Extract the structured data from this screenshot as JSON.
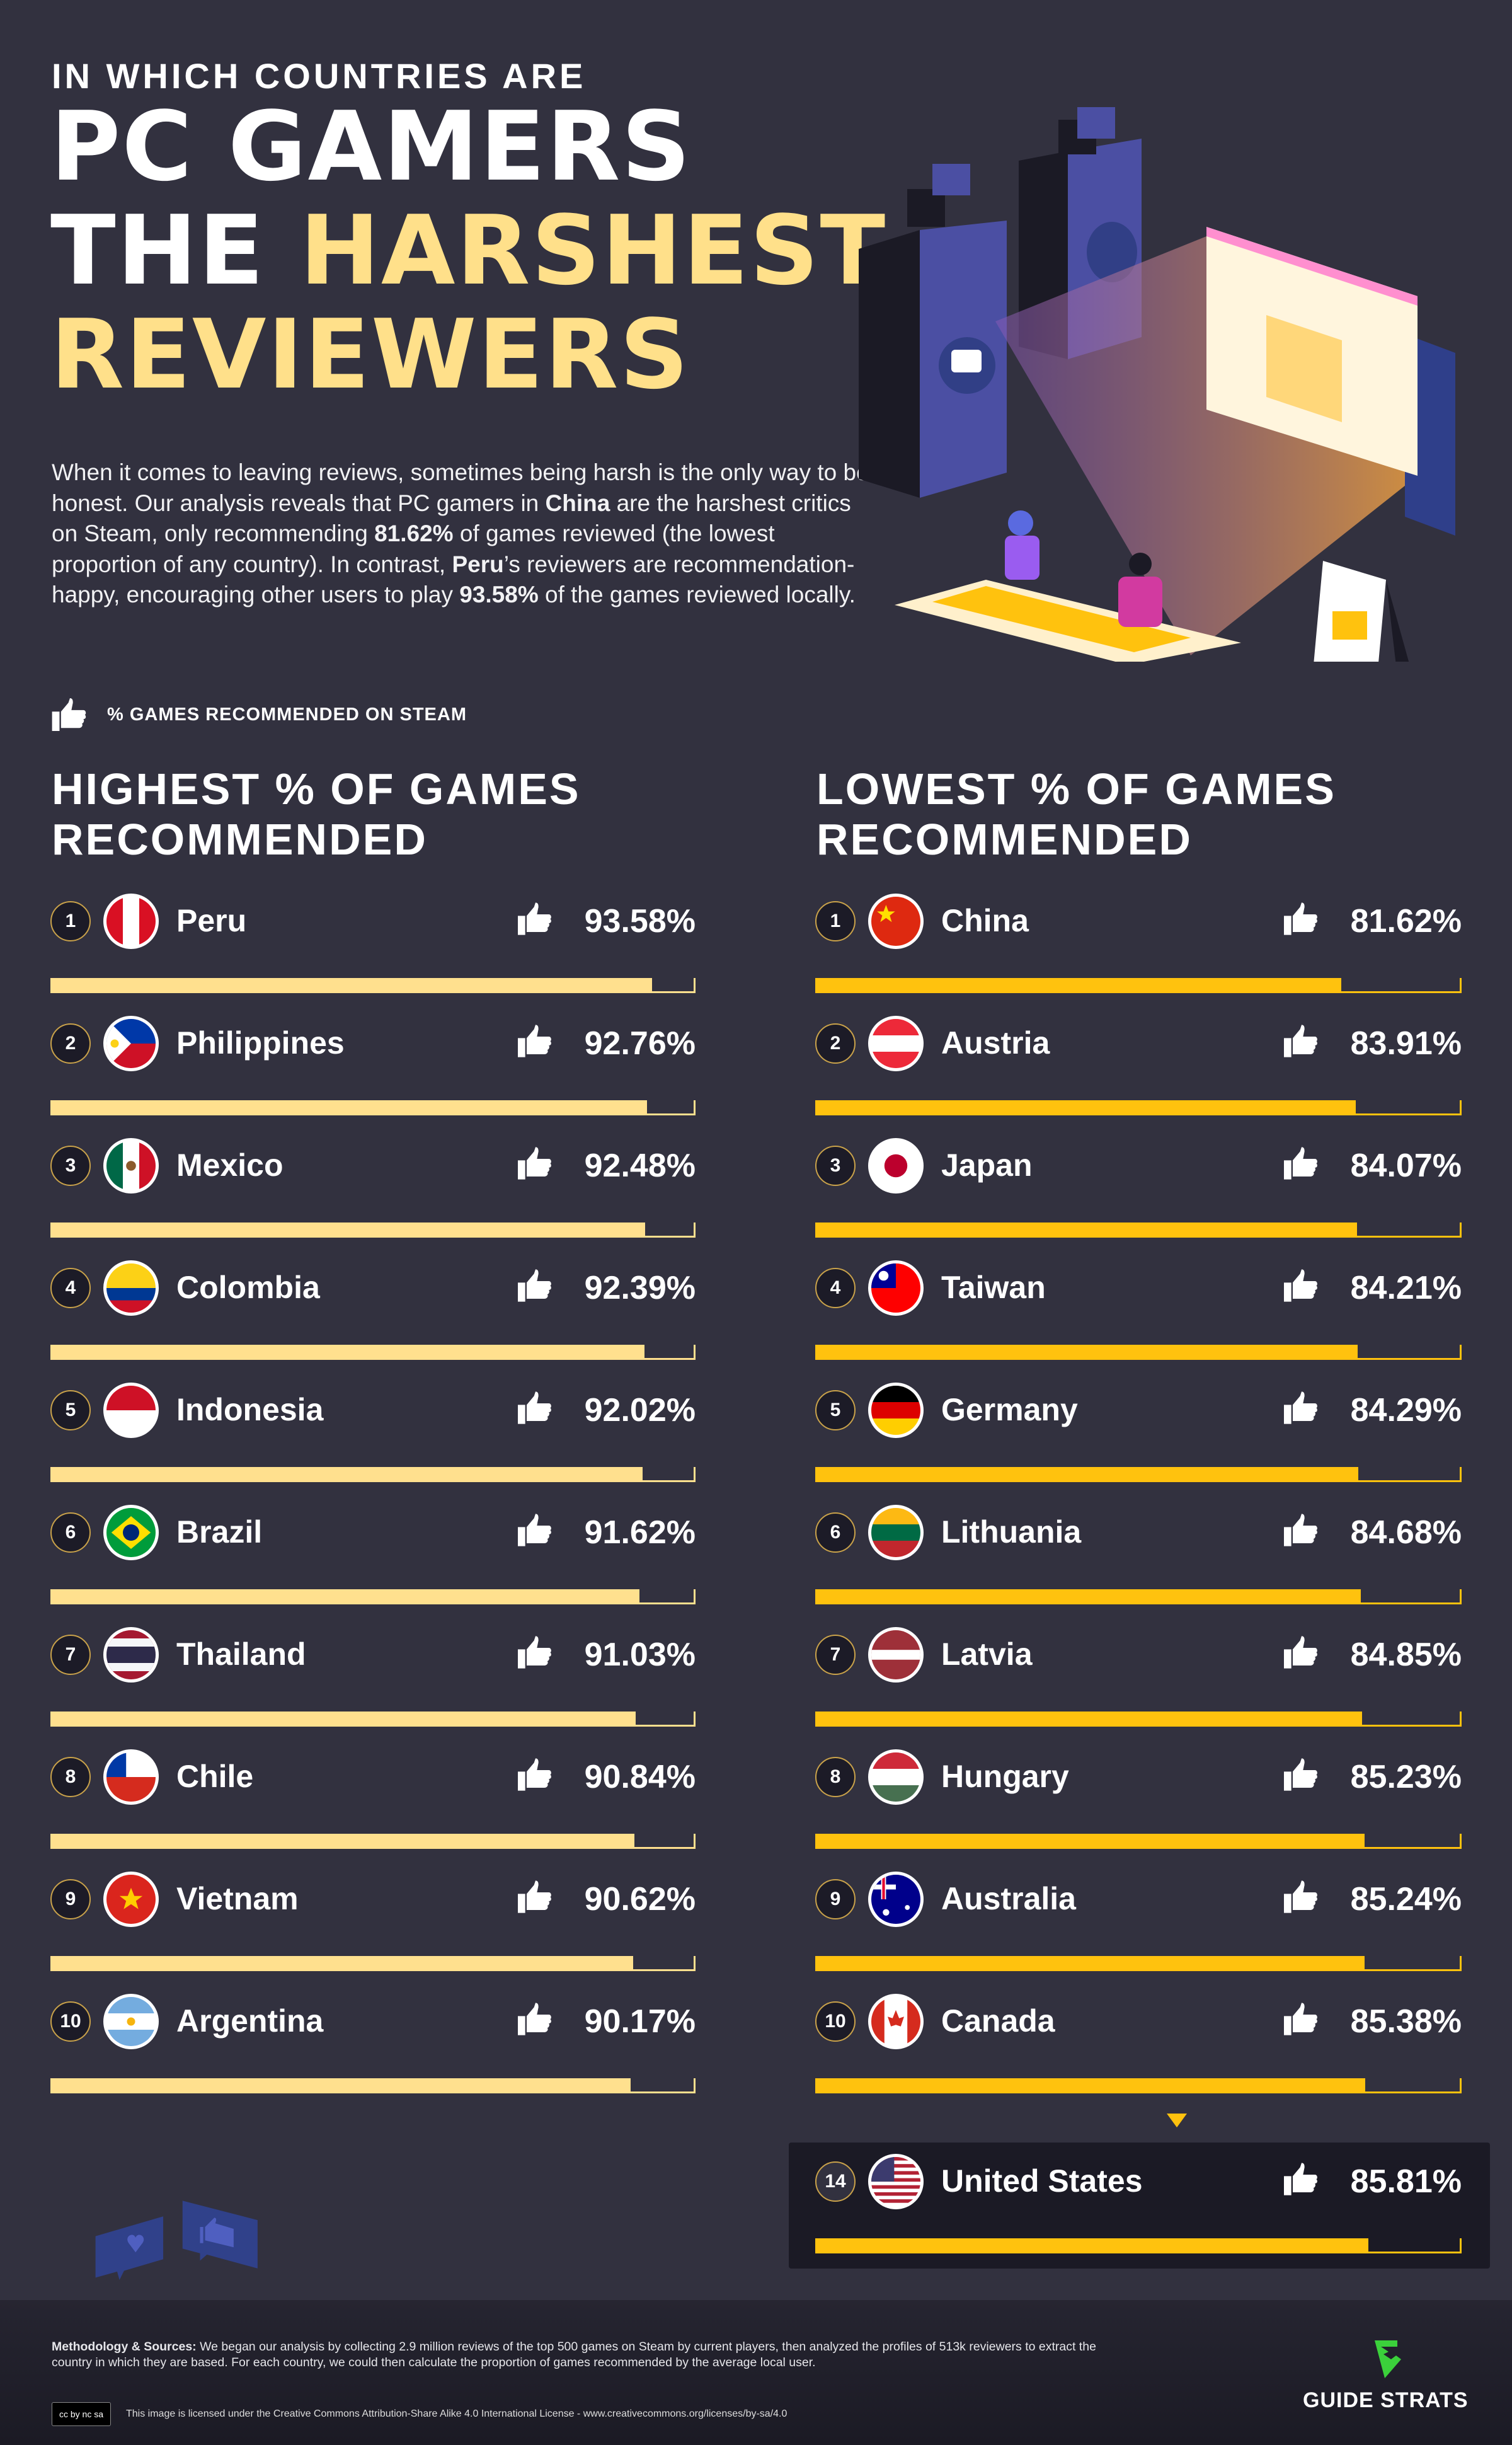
{
  "header": {
    "kicker": "IN WHICH COUNTRIES ARE",
    "title_line1": "PC GAMERS",
    "title_line2_a": "THE ",
    "title_line2_b": "HARSHEST",
    "title_line3": "REVIEWERS"
  },
  "intro": {
    "p1": "When it comes to leaving reviews, sometimes being harsh is the only way to be honest. Our analysis reveals that PC gamers in ",
    "b1": "China",
    "p2": " are the harshest critics on Steam, only recommending ",
    "b2": "81.62%",
    "p3": " of games reviewed (the lowest proportion of any country). In contrast, ",
    "b3": "Peru",
    "p4": "’s reviewers are recommendation-happy, encouraging other users to play ",
    "b4": "93.58%",
    "p5": " of the games reviewed locally."
  },
  "legend": {
    "icon": "thumbs-up-icon",
    "label": "% GAMES RECOMMENDED ON STEAM"
  },
  "colors": {
    "background": "#32313f",
    "highest_bar": "#ffe08e",
    "lowest_bar": "#ffc20e",
    "title_accent": "#ffe08a"
  },
  "chart_data": [
    {
      "type": "bar",
      "title": "HIGHEST % OF GAMES RECOMMENDED",
      "unit": "%",
      "ylim": [
        0,
        100
      ],
      "rows": [
        {
          "rank": "1",
          "country": "Peru",
          "value": 93.58,
          "label": "93.58%"
        },
        {
          "rank": "2",
          "country": "Philippines",
          "value": 92.76,
          "label": "92.76%"
        },
        {
          "rank": "3",
          "country": "Mexico",
          "value": 92.48,
          "label": "92.48%"
        },
        {
          "rank": "4",
          "country": "Colombia",
          "value": 92.39,
          "label": "92.39%"
        },
        {
          "rank": "5",
          "country": "Indonesia",
          "value": 92.02,
          "label": "92.02%"
        },
        {
          "rank": "6",
          "country": "Brazil",
          "value": 91.62,
          "label": "91.62%"
        },
        {
          "rank": "7",
          "country": "Thailand",
          "value": 91.03,
          "label": "91.03%"
        },
        {
          "rank": "8",
          "country": "Chile",
          "value": 90.84,
          "label": "90.84%"
        },
        {
          "rank": "9",
          "country": "Vietnam",
          "value": 90.62,
          "label": "90.62%"
        },
        {
          "rank": "10",
          "country": "Argentina",
          "value": 90.17,
          "label": "90.17%"
        }
      ]
    },
    {
      "type": "bar",
      "title": "LOWEST % OF GAMES RECOMMENDED",
      "unit": "%",
      "ylim": [
        0,
        100
      ],
      "rows": [
        {
          "rank": "1",
          "country": "China",
          "value": 81.62,
          "label": "81.62%"
        },
        {
          "rank": "2",
          "country": "Austria",
          "value": 83.91,
          "label": "83.91%"
        },
        {
          "rank": "3",
          "country": "Japan",
          "value": 84.07,
          "label": "84.07%"
        },
        {
          "rank": "4",
          "country": "Taiwan",
          "value": 84.21,
          "label": "84.21%"
        },
        {
          "rank": "5",
          "country": "Germany",
          "value": 84.29,
          "label": "84.29%"
        },
        {
          "rank": "6",
          "country": "Lithuania",
          "value": 84.68,
          "label": "84.68%"
        },
        {
          "rank": "7",
          "country": "Latvia",
          "value": 84.85,
          "label": "84.85%"
        },
        {
          "rank": "8",
          "country": "Hungary",
          "value": 85.23,
          "label": "85.23%"
        },
        {
          "rank": "9",
          "country": "Australia",
          "value": 85.24,
          "label": "85.24%"
        },
        {
          "rank": "10",
          "country": "Canada",
          "value": 85.38,
          "label": "85.38%"
        }
      ],
      "highlight": {
        "rank": "14",
        "country": "United States",
        "value": 85.81,
        "label": "85.81%"
      }
    }
  ],
  "footer": {
    "method_label": "Methodology & Sources:",
    "method_text": " We began our analysis by collecting 2.9 million reviews of the top 500 games on Steam by current players, then analyzed the profiles of 513k reviewers to extract the country in which they are based. For each country, we could then calculate the proportion of games recommended by the average local user.",
    "license": "This image is licensed under the Creative Commons Attribution-Share Alike 4.0 International License - www.creativecommons.org/licenses/by-sa/4.0",
    "cc_badge": "cc by nc sa",
    "brand": "GUIDE STRATS"
  }
}
